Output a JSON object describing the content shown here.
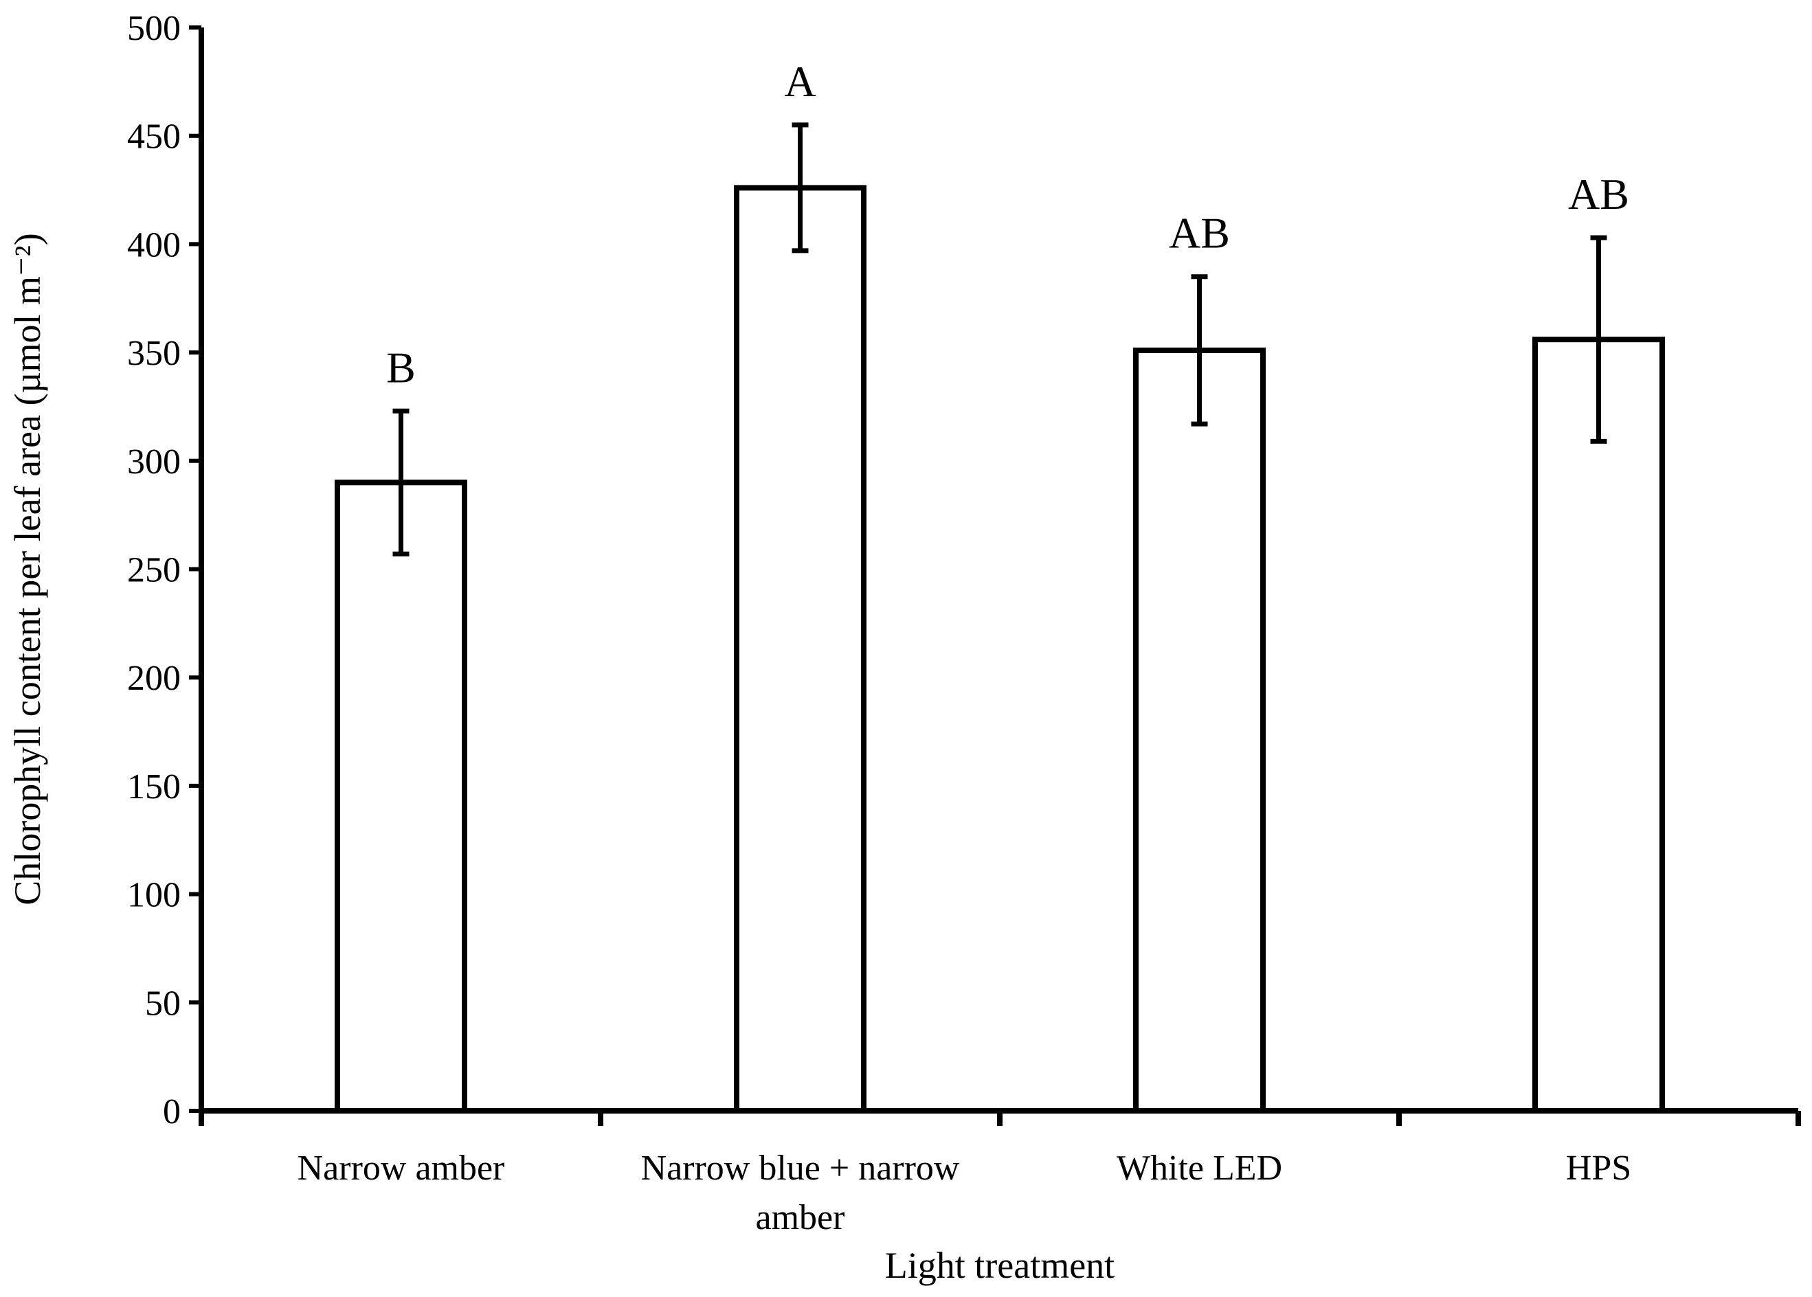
{
  "chart_data": {
    "type": "bar",
    "title": "",
    "xlabel": "Light treatment",
    "ylabel": "Chlorophyll content per leaf area (µmol m⁻²)",
    "ylim": [
      0,
      500
    ],
    "yticks": [
      0,
      50,
      100,
      150,
      200,
      250,
      300,
      350,
      400,
      450,
      500
    ],
    "ytick_labels": [
      "0",
      "50",
      "100",
      "150",
      "200",
      "250",
      "300",
      "350",
      "400",
      "450",
      "500"
    ],
    "categories": [
      "Narrow amber",
      "Narrow blue + narrow amber",
      "White LED",
      "HPS"
    ],
    "category_label_lines": [
      [
        "Narrow amber"
      ],
      [
        "Narrow blue + narrow",
        "amber"
      ],
      [
        "White LED"
      ],
      [
        "HPS"
      ]
    ],
    "values": [
      290,
      426,
      351,
      356
    ],
    "error": [
      33,
      29,
      34,
      47
    ],
    "significance_letters": [
      "B",
      "A",
      "AB",
      "AB"
    ],
    "grid": false,
    "legend": "none",
    "colors": {
      "bar_fill": "#ffffff",
      "bar_stroke": "#000000",
      "axis": "#000000"
    }
  }
}
